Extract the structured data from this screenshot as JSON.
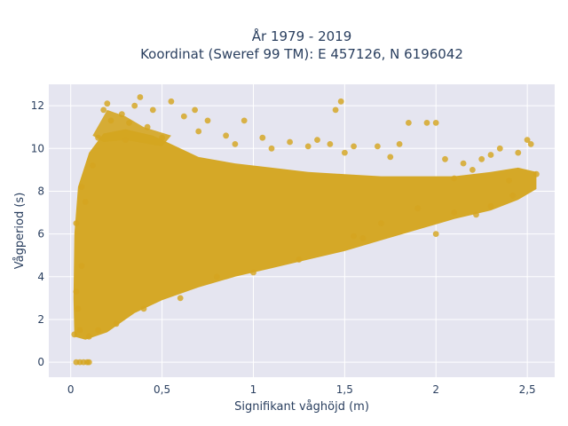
{
  "chart_data": {
    "type": "scatter",
    "title_lines": [
      "År 1979 - 2019",
      "Koordinat (Sweref 99 TM): E 457126, N 6196042"
    ],
    "xlabel": "Signifikant våghöjd (m)",
    "ylabel": "Vågperiod (s)",
    "xlim": [
      -0.12,
      2.65
    ],
    "ylim": [
      -0.7,
      13.0
    ],
    "x_ticks": [
      {
        "value": 0,
        "label": "0"
      },
      {
        "value": 0.5,
        "label": "0,5"
      },
      {
        "value": 1,
        "label": "1"
      },
      {
        "value": 1.5,
        "label": "1,5"
      },
      {
        "value": 2,
        "label": "2"
      },
      {
        "value": 2.5,
        "label": "2,5"
      }
    ],
    "y_ticks": [
      {
        "value": 0,
        "label": "0"
      },
      {
        "value": 2,
        "label": "2"
      },
      {
        "value": 4,
        "label": "4"
      },
      {
        "value": 6,
        "label": "6"
      },
      {
        "value": 8,
        "label": "8"
      },
      {
        "value": 10,
        "label": "10"
      },
      {
        "value": 12,
        "label": "12"
      }
    ],
    "grid": true,
    "marker_color": "#D4A520",
    "plot_bg": "#E5E5F0",
    "series": [
      {
        "points": [
          [
            0.03,
            0
          ],
          [
            0.05,
            0
          ],
          [
            0.07,
            0
          ],
          [
            0.09,
            0
          ],
          [
            0.1,
            0
          ],
          [
            0.02,
            1.3
          ],
          [
            0.03,
            3.3
          ],
          [
            0.03,
            6.5
          ],
          [
            0.04,
            2.5
          ],
          [
            0.05,
            1.5
          ],
          [
            0.06,
            8.2
          ],
          [
            0.06,
            4.5
          ],
          [
            0.08,
            7.5
          ],
          [
            0.1,
            1.2
          ],
          [
            0.12,
            9.2
          ],
          [
            0.15,
            10.5
          ],
          [
            0.15,
            1.5
          ],
          [
            0.18,
            11.8
          ],
          [
            0.2,
            12.1
          ],
          [
            0.22,
            11.3
          ],
          [
            0.25,
            1.8
          ],
          [
            0.28,
            11.6
          ],
          [
            0.3,
            10.4
          ],
          [
            0.32,
            11.2
          ],
          [
            0.35,
            12.0
          ],
          [
            0.38,
            12.4
          ],
          [
            0.4,
            2.5
          ],
          [
            0.42,
            11.0
          ],
          [
            0.45,
            11.8
          ],
          [
            0.5,
            10.5
          ],
          [
            0.55,
            12.2
          ],
          [
            0.6,
            3.0
          ],
          [
            0.62,
            11.5
          ],
          [
            0.68,
            11.8
          ],
          [
            0.7,
            10.8
          ],
          [
            0.75,
            11.3
          ],
          [
            0.8,
            4.0
          ],
          [
            0.85,
            10.6
          ],
          [
            0.9,
            10.2
          ],
          [
            0.95,
            11.3
          ],
          [
            1.0,
            4.2
          ],
          [
            1.05,
            10.5
          ],
          [
            1.1,
            10.0
          ],
          [
            1.2,
            10.3
          ],
          [
            1.25,
            4.8
          ],
          [
            1.3,
            10.1
          ],
          [
            1.35,
            10.4
          ],
          [
            1.42,
            10.2
          ],
          [
            1.45,
            11.8
          ],
          [
            1.48,
            12.2
          ],
          [
            1.5,
            9.8
          ],
          [
            1.55,
            10.1
          ],
          [
            1.6,
            5.8
          ],
          [
            1.68,
            10.1
          ],
          [
            1.75,
            9.6
          ],
          [
            1.8,
            10.2
          ],
          [
            1.85,
            11.2
          ],
          [
            1.95,
            11.2
          ],
          [
            2.0,
            11.2
          ],
          [
            2.0,
            6.0
          ],
          [
            2.05,
            9.5
          ],
          [
            2.1,
            7.0
          ],
          [
            2.15,
            9.3
          ],
          [
            2.2,
            9.0
          ],
          [
            2.25,
            9.5
          ],
          [
            2.3,
            9.7
          ],
          [
            2.35,
            10.0
          ],
          [
            2.4,
            8.5
          ],
          [
            2.45,
            9.8
          ],
          [
            2.5,
            10.4
          ],
          [
            2.52,
            10.2
          ],
          [
            2.55,
            8.8
          ],
          [
            2.42,
            7.8
          ],
          [
            2.3,
            7.3
          ],
          [
            2.22,
            6.9
          ],
          [
            2.1,
            8.6
          ],
          [
            1.9,
            7.2
          ],
          [
            1.7,
            6.5
          ],
          [
            1.55,
            5.9
          ]
        ]
      }
    ]
  }
}
